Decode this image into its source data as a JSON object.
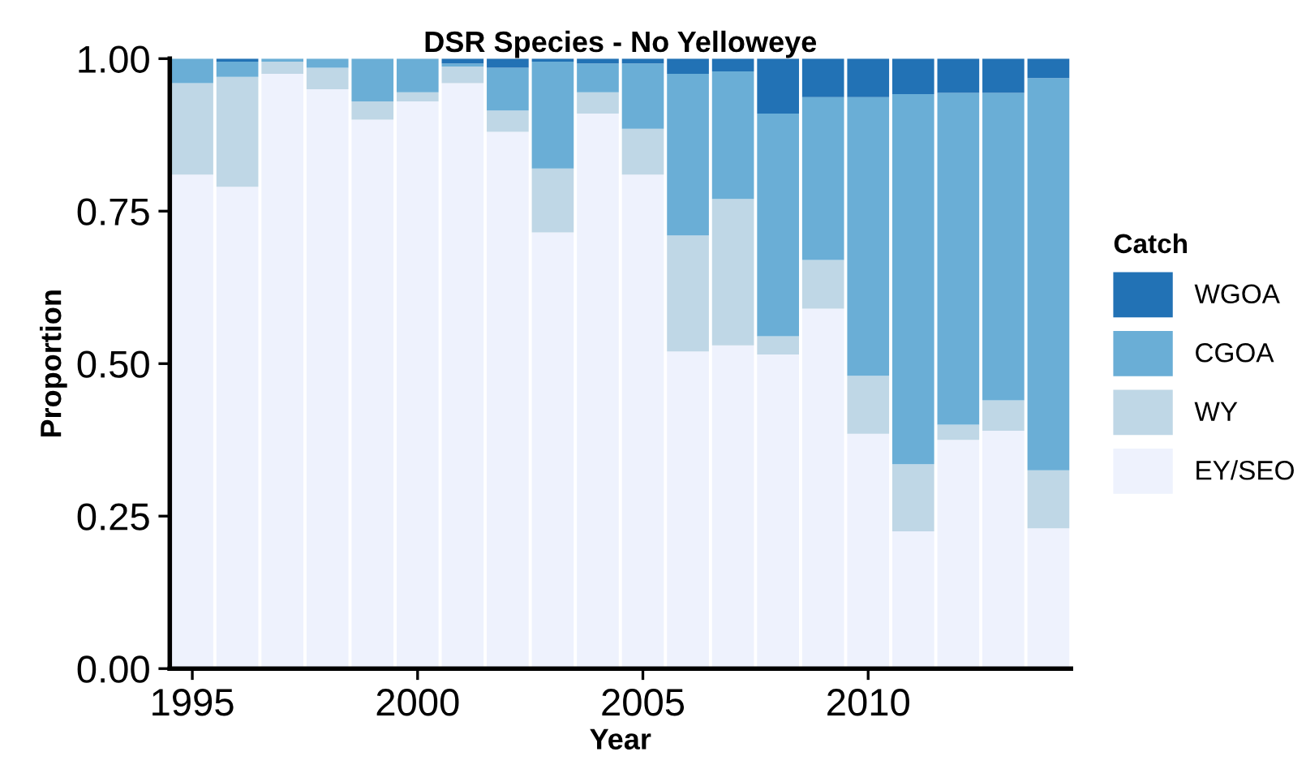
{
  "chart_data": {
    "type": "bar",
    "stacked": true,
    "title": "DSR Species - No Yelloweye",
    "xlabel": "Year",
    "ylabel": "Proportion",
    "legend_title": "Catch",
    "legend": "right",
    "grid": false,
    "x": [
      1995,
      1996,
      1997,
      1998,
      1999,
      2000,
      2001,
      2002,
      2003,
      2004,
      2005,
      2006,
      2007,
      2008,
      2009,
      2010,
      2011,
      2012,
      2013,
      2014
    ],
    "xlim": [
      1994.5,
      2014.5
    ],
    "xticks": [
      1995,
      2000,
      2005,
      2010
    ],
    "ylim": [
      0,
      1
    ],
    "yticks": [
      {
        "value": 0,
        "label": "0.00"
      },
      {
        "value": 0.25,
        "label": "0.25"
      },
      {
        "value": 0.5,
        "label": "0.50"
      },
      {
        "value": 0.75,
        "label": "0.75"
      },
      {
        "value": 1,
        "label": "1.00"
      }
    ],
    "series": [
      {
        "name": "EY/SEO",
        "color": "#eef2fd",
        "values": [
          0.81,
          0.79,
          0.975,
          0.95,
          0.9,
          0.93,
          0.96,
          0.88,
          0.715,
          0.91,
          0.81,
          0.52,
          0.53,
          0.515,
          0.59,
          0.385,
          0.225,
          0.375,
          0.39,
          0.23
        ]
      },
      {
        "name": "WY",
        "color": "#bfd7e6",
        "values": [
          0.15,
          0.18,
          0.02,
          0.035,
          0.03,
          0.015,
          0.027,
          0.035,
          0.105,
          0.035,
          0.075,
          0.19,
          0.24,
          0.03,
          0.08,
          0.095,
          0.11,
          0.025,
          0.05,
          0.095
        ]
      },
      {
        "name": "CGOA",
        "color": "#6aaed6",
        "values": [
          0.04,
          0.025,
          0.005,
          0.015,
          0.07,
          0.055,
          0.005,
          0.07,
          0.175,
          0.047,
          0.107,
          0.265,
          0.209,
          0.365,
          0.267,
          0.457,
          0.607,
          0.544,
          0.504,
          0.643
        ]
      },
      {
        "name": "WGOA",
        "color": "#2272b5",
        "values": [
          0,
          0.005,
          0,
          0,
          0,
          0,
          0.008,
          0.015,
          0.005,
          0.008,
          0.008,
          0.025,
          0.021,
          0.09,
          0.063,
          0.063,
          0.058,
          0.056,
          0.056,
          0.032
        ]
      }
    ]
  }
}
